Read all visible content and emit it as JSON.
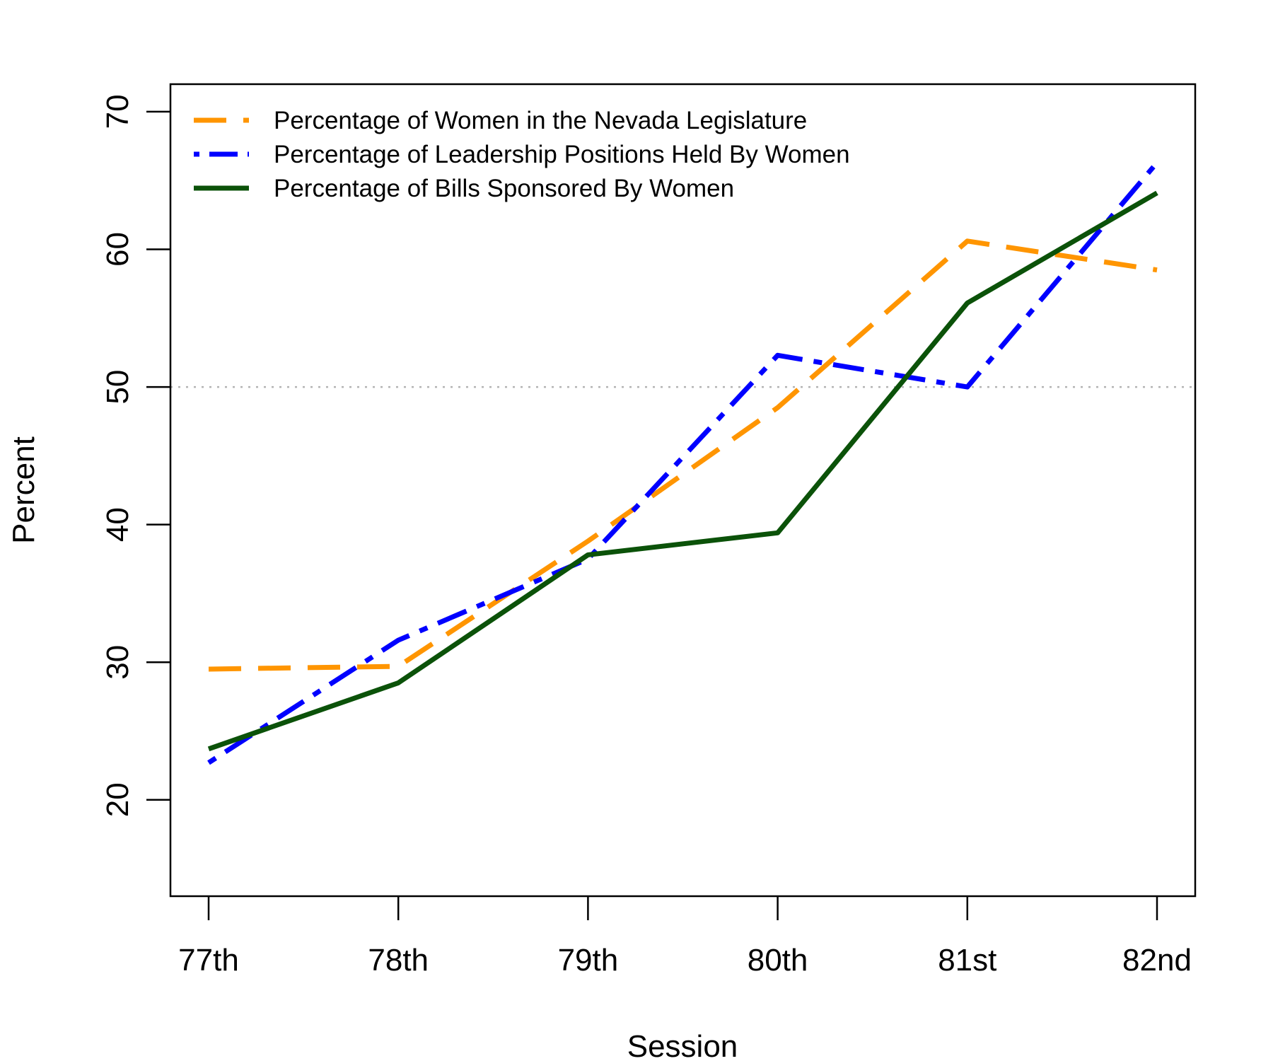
{
  "chart_data": {
    "type": "line",
    "title": "",
    "xlabel": "Session",
    "ylabel": "Percent",
    "categories": [
      "77th",
      "78th",
      "79th",
      "80th",
      "81st",
      "82nd"
    ],
    "ylim": [
      13,
      72
    ],
    "yticks": [
      20,
      30,
      40,
      50,
      60,
      70
    ],
    "reference_line": {
      "y": 50,
      "color": "#b3b3b3",
      "style": "dotted"
    },
    "grid": false,
    "legend_position": "top-left",
    "series": [
      {
        "name": "Percentage of Women in the Nevada Legislature",
        "color": "#ff9500",
        "dash": "long-dash",
        "values": [
          29.5,
          29.7,
          38.8,
          48.5,
          60.6,
          58.5
        ]
      },
      {
        "name": "Percentage of Leadership Positions Held By Women",
        "color": "#0000ff",
        "dash": "dot-dash",
        "values": [
          22.7,
          31.6,
          37.5,
          52.3,
          50.0,
          66.3
        ]
      },
      {
        "name": "Percentage of Bills Sponsored By Women",
        "color": "#0b5209",
        "dash": "solid",
        "values": [
          23.7,
          28.5,
          37.8,
          39.4,
          56.1,
          64.1
        ]
      }
    ]
  }
}
